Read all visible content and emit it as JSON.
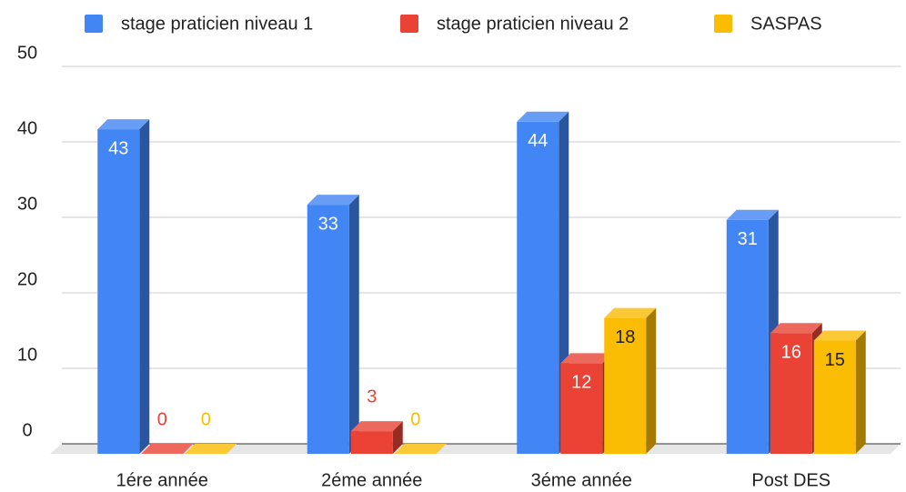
{
  "chart_data": {
    "type": "bar3d",
    "categories": [
      "1ére année",
      "2éme année",
      "3éme année",
      "Post DES"
    ],
    "series": [
      {
        "name": "stage praticien niveau 1",
        "color": "#4285f4",
        "label_color": "#ffffff",
        "values": [
          43,
          33,
          44,
          31
        ]
      },
      {
        "name": "stage praticien niveau 2",
        "color": "#ea4335",
        "label_color": "#ffffff",
        "values": [
          0,
          3,
          12,
          16
        ]
      },
      {
        "name": "SASPAS",
        "color": "#fbbc04",
        "label_color": "#222222",
        "values": [
          0,
          0,
          18,
          15
        ]
      }
    ],
    "ylim": [
      0,
      50
    ],
    "yticks": [
      0,
      10,
      20,
      30,
      40,
      50
    ],
    "grid": true,
    "legend": "top"
  }
}
